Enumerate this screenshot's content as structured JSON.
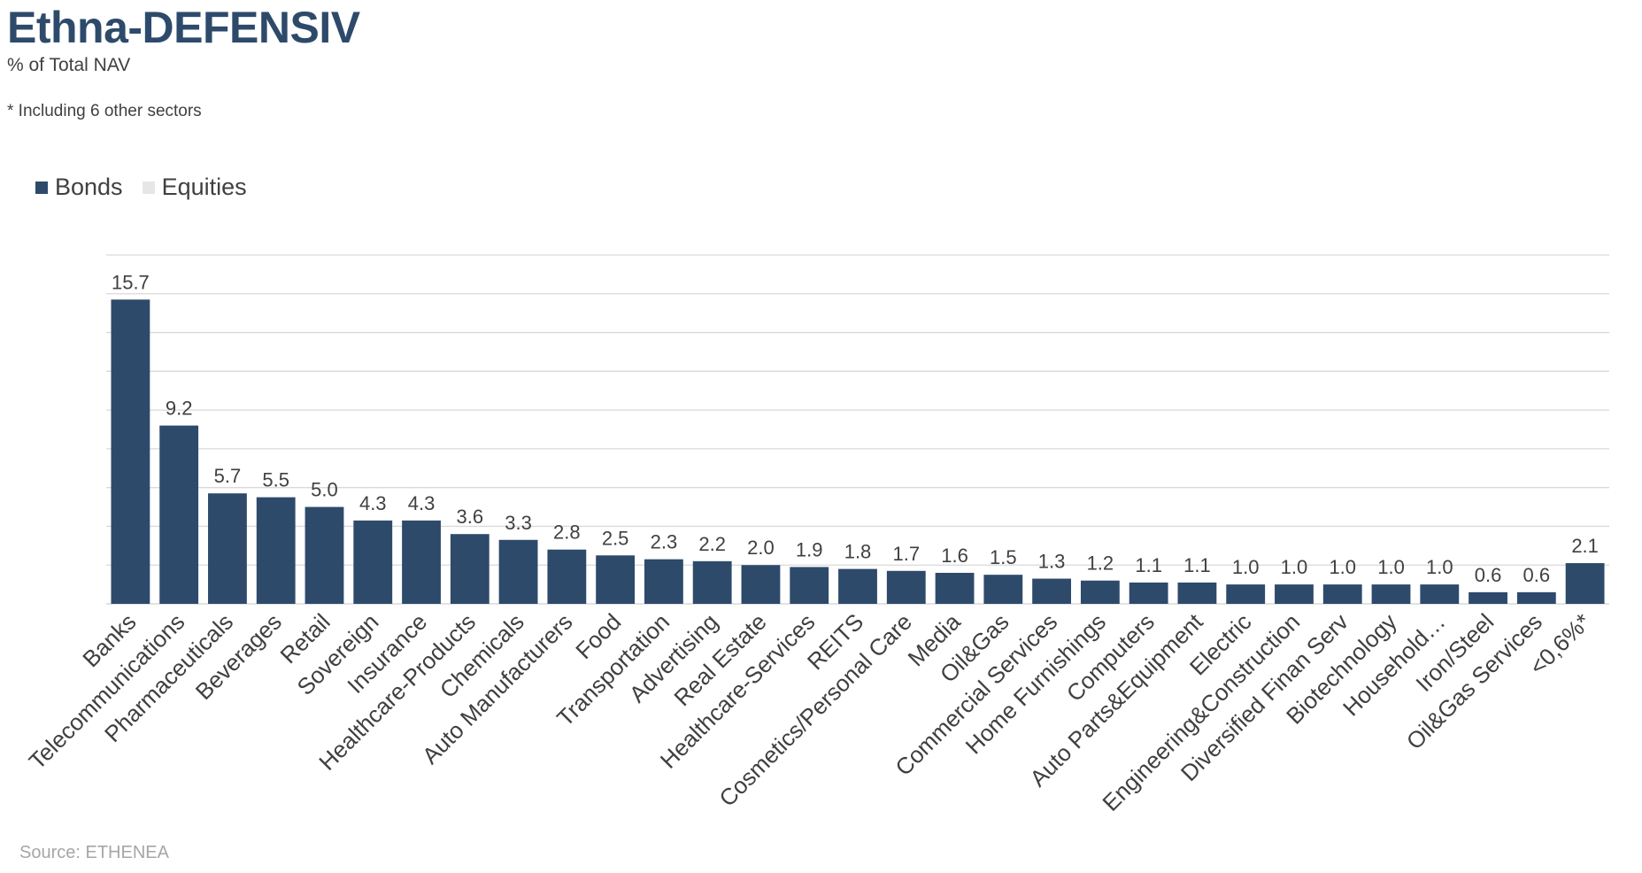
{
  "header": {
    "title": "Ethna-DEFENSIV",
    "subtitle": "% of Total NAV",
    "note": "* Including 6 other sectors"
  },
  "footer": {
    "source": "Source: ETHENEA"
  },
  "colors": {
    "bonds": "#2e4a6b",
    "equities": "#e6e6e6",
    "grid": "#d9d9d9",
    "label": "#404040"
  },
  "chart_data": {
    "type": "bar",
    "legend_position": "top-left",
    "grid": true,
    "ylim": [
      0,
      18
    ],
    "categories": [
      "Banks",
      "Telecommunications",
      "Pharmaceuticals",
      "Beverages",
      "Retail",
      "Sovereign",
      "Insurance",
      "Healthcare-Products",
      "Chemicals",
      "Auto Manufacturers",
      "Food",
      "Transportation",
      "Advertising",
      "Real Estate",
      "Healthcare-Services",
      "REITS",
      "Cosmetics/Personal Care",
      "Media",
      "Oil&Gas",
      "Commercial Services",
      "Home Furnishings",
      "Computers",
      "Auto Parts&Equipment",
      "Electric",
      "Engineering&Construction",
      "Diversified Finan Serv",
      "Biotechnology",
      "Household…",
      "Iron/Steel",
      "Oil&Gas Services",
      "<0,6%*"
    ],
    "series": [
      {
        "name": "Bonds",
        "values": [
          15.7,
          9.2,
          5.7,
          5.5,
          5.0,
          4.3,
          4.3,
          3.6,
          3.3,
          2.8,
          2.5,
          2.3,
          2.2,
          2.0,
          1.9,
          1.8,
          1.7,
          1.6,
          1.5,
          1.3,
          1.2,
          1.1,
          1.1,
          1.0,
          1.0,
          1.0,
          1.0,
          1.0,
          0.6,
          0.6,
          2.1
        ]
      },
      {
        "name": "Equities",
        "values": [
          0,
          0,
          0,
          0,
          0,
          0,
          0,
          0,
          0,
          0,
          0,
          0,
          0,
          0,
          0,
          0,
          0,
          0,
          0,
          0,
          0,
          0,
          0,
          0,
          0,
          0,
          0,
          0,
          0,
          0,
          0
        ]
      }
    ],
    "data_labels": [
      "15.7",
      "9.2",
      "5.7",
      "5.5",
      "5.0",
      "4.3",
      "4.3",
      "3.6",
      "3.3",
      "2.8",
      "2.5",
      "2.3",
      "2.2",
      "2.0",
      "1.9",
      "1.8",
      "1.7",
      "1.6",
      "1.5",
      "1.3",
      "1.2",
      "1.1",
      "1.1",
      "1.0",
      "1.0",
      "1.0",
      "1.0",
      "1.0",
      "0.6",
      "0.6",
      "2.1"
    ]
  }
}
